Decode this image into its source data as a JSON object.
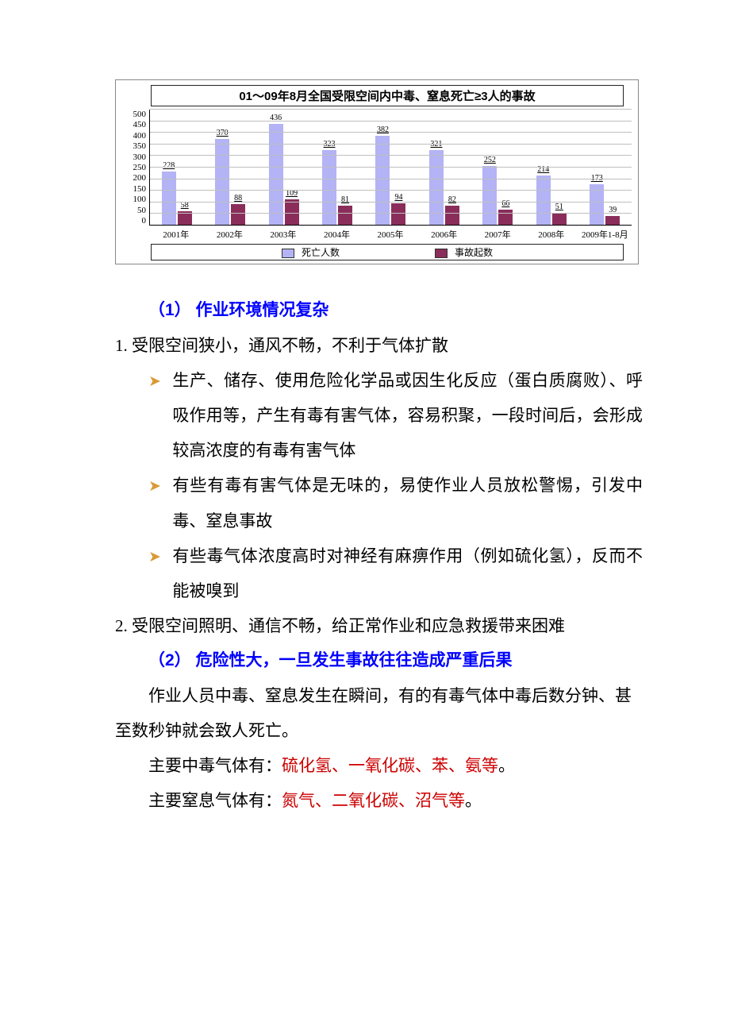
{
  "chart": {
    "type": "bar",
    "title": "01～09年8月全国受限空间内中毒、窒息死亡≥3人的事故",
    "categories": [
      "2001年",
      "2002年",
      "2003年",
      "2004年",
      "2005年",
      "2006年",
      "2007年",
      "2008年",
      "2009年1-8月"
    ],
    "series": [
      {
        "name": "死亡人数",
        "color": "#b3b3f5",
        "values": [
          228,
          370,
          436,
          323,
          382,
          321,
          252,
          214,
          173
        ]
      },
      {
        "name": "事故起数",
        "color": "#8a2d5a",
        "values": [
          58,
          88,
          109,
          81,
          94,
          82,
          66,
          51,
          39
        ]
      }
    ],
    "ylim": [
      0,
      500
    ],
    "ytick_step": 50,
    "grid_color": "#bfbfbf",
    "label_fontsize": 11,
    "title_fontsize": 15,
    "background_color": "#ffffff"
  },
  "section1": {
    "heading": "（1） 作业环境情况复杂",
    "line1": "1. 受限空间狭小，通风不畅，不利于气体扩散",
    "b1": "生产、储存、使用危险化学品或因生化反应（蛋白质腐败）、呼吸作用等，产生有毒有害气体，容易积聚，一段时间后，会形成较高浓度的有毒有害气体",
    "b2": "有些有毒有害气体是无味的，易使作业人员放松警惕，引发中毒、窒息事故",
    "b3": "有些毒气体浓度高时对神经有麻痹作用（例如硫化氢），反而不能被嗅到",
    "line2": "2. 受限空间照明、通信不畅，给正常作业和应急救援带来困难"
  },
  "section2": {
    "heading": "（2） 危险性大，一旦发生事故往往造成严重后果",
    "p1": "作业人员中毒、窒息发生在瞬间，有的有毒气体中毒后数分钟、甚至数秒钟就会致人死亡。",
    "p2a": "主要中毒气体有：",
    "p2b": "硫化氢、一氧化碳、苯、氨等",
    "p2c": "。",
    "p3a": "主要窒息气体有：",
    "p3b": "氮气、二氧化碳、沼气等",
    "p3c": "。"
  }
}
